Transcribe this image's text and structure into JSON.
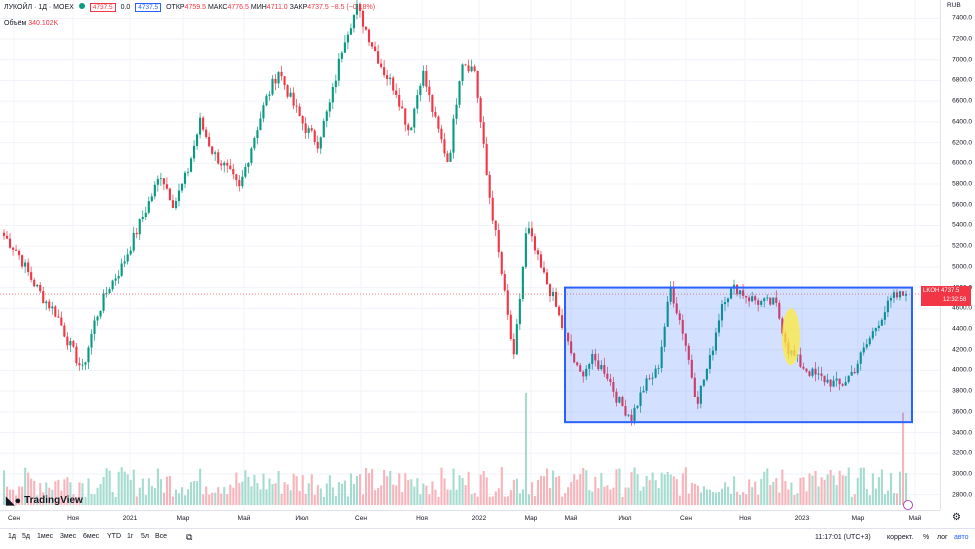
{
  "legend": {
    "symbol_title": "ЛУКОЙЛ · 1Д · MOEX",
    "sell_price": "4737.5",
    "spread": "0.0",
    "buy_price": "4737.5",
    "open_label": "ОТКР",
    "open_value": "4759.5",
    "high_label": "МАКС",
    "high_value": "4776.5",
    "low_label": "МИН",
    "low_value": "4711.0",
    "close_label": "ЗАКР",
    "close_value": "4737.5",
    "change": "−8.5 (−0.18%)",
    "volume_label": "Объём",
    "volume_value": "340.102K"
  },
  "price_axis": {
    "currency": "RUB",
    "ticks": [
      "7400.0",
      "7200.0",
      "7000.0",
      "6800.0",
      "6600.0",
      "6400.0",
      "6200.0",
      "6000.0",
      "5800.0",
      "5600.0",
      "5400.0",
      "5200.0",
      "5000.0",
      "4800.0",
      "4600.0",
      "4400.0",
      "4200.0",
      "4000.0",
      "3800.0",
      "3600.0",
      "3400.0",
      "3200.0",
      "3000.0",
      "2800.0"
    ],
    "tick_values": [
      7400,
      7200,
      7000,
      6800,
      6600,
      6400,
      6200,
      6000,
      5800,
      5600,
      5400,
      5200,
      5000,
      4800,
      4600,
      4400,
      4200,
      4000,
      3800,
      3600,
      3400,
      3200,
      3000,
      2800
    ],
    "price_tag": {
      "ticker": "LKOH",
      "price": "4737.5",
      "countdown": "12:32:58"
    }
  },
  "time_axis": {
    "labels": [
      "Сен",
      "Ноя",
      "2021",
      "Мар",
      "Май",
      "Июл",
      "Сен",
      "Ноя",
      "2022",
      "Мар",
      "Май",
      "Июл",
      "Сен",
      "Ноя",
      "2023",
      "Мар",
      "Май"
    ]
  },
  "bottom_bar": {
    "ranges": [
      "1д",
      "5д",
      "1мес",
      "3мес",
      "6мес",
      "YTD",
      "1г",
      "5л",
      "Все"
    ],
    "time": "11:17:01 (UTC+3)",
    "correct": "коррект.",
    "percent": "%",
    "log": "лог",
    "auto": "авто"
  },
  "logo_text": "TradingView",
  "chart_data": {
    "type": "candlestick",
    "y_range": [
      2700,
      7500
    ],
    "x_labels": [
      "Сен",
      "Ноя",
      "2021",
      "Мар",
      "Май",
      "Июл",
      "Сен",
      "Ноя",
      "2022",
      "Мар",
      "Май",
      "Июл",
      "Сен",
      "Ноя",
      "2023",
      "Мар",
      "Май"
    ],
    "close_path_approx": [
      5300,
      5150,
      4900,
      4700,
      4550,
      4250,
      4000,
      4500,
      4800,
      5000,
      5300,
      5600,
      5900,
      5600,
      5900,
      6400,
      6100,
      5950,
      5750,
      6200,
      6600,
      6900,
      6600,
      6350,
      6200,
      6600,
      7200,
      7500,
      7200,
      6900,
      6700,
      6300,
      6900,
      6400,
      6000,
      7000,
      6900,
      5800,
      5000,
      4100,
      5400,
      5000,
      4700,
      4300,
      3950,
      4100,
      4000,
      3700,
      3550,
      3850,
      4000,
      4800,
      4350,
      3700,
      4100,
      4700,
      4800,
      4700,
      4650,
      4650,
      4200,
      4050,
      3950,
      3900,
      3850,
      4000,
      4250,
      4500,
      4700,
      4737.5
    ],
    "last_close": 4737.5,
    "annotations": [
      {
        "type": "rectangle",
        "color": "#2962ff",
        "price_range": [
          3500,
          4800
        ]
      },
      {
        "type": "ellipse",
        "color": "#ffeb3b",
        "price_range": [
          4050,
          4600
        ]
      }
    ],
    "colors": {
      "up": "#089981",
      "down": "#f23645"
    }
  }
}
